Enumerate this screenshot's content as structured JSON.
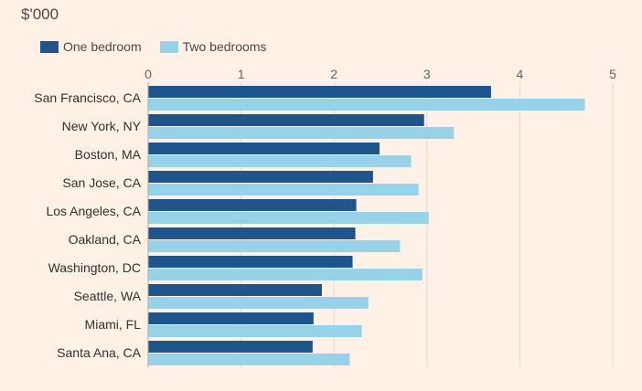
{
  "chart_data": {
    "type": "bar",
    "orientation": "horizontal",
    "unit_label": "$'000",
    "categories": [
      "San Francisco, CA",
      "New York, NY",
      "Boston, MA",
      "San Jose, CA",
      "Los Angeles, CA",
      "Oakland, CA",
      "Washington, DC",
      "Seattle, WA",
      "Miami, FL",
      "Santa Ana, CA"
    ],
    "series": [
      {
        "name": "One bedroom",
        "color": "#1e558c",
        "values": [
          3.69,
          2.97,
          2.49,
          2.42,
          2.24,
          2.23,
          2.2,
          1.87,
          1.78,
          1.77
        ]
      },
      {
        "name": "Two bedrooms",
        "color": "#96d3e8",
        "values": [
          4.7,
          3.29,
          2.83,
          2.91,
          3.02,
          2.71,
          2.95,
          2.37,
          2.3,
          2.17
        ]
      }
    ],
    "xlim": [
      0,
      5
    ],
    "xticks": [
      "0",
      "1",
      "2",
      "3",
      "4",
      "5"
    ],
    "grid": true,
    "legend_position": "top-left",
    "background": "#fff1e5"
  }
}
